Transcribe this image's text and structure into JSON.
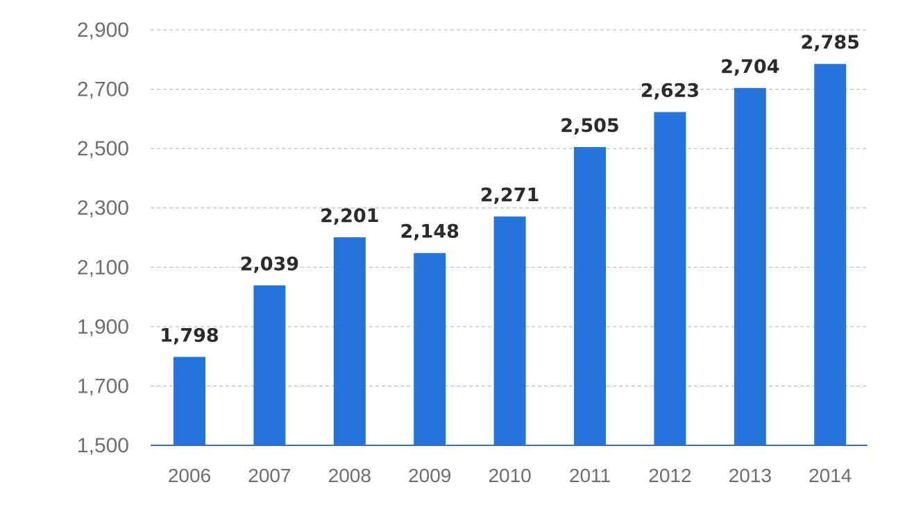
{
  "chart_data": {
    "type": "bar",
    "title": "",
    "xlabel": "",
    "ylabel": "",
    "categories": [
      "2006",
      "2007",
      "2008",
      "2009",
      "2010",
      "2011",
      "2012",
      "2013",
      "2014"
    ],
    "values": [
      1798,
      2039,
      2201,
      2148,
      2271,
      2505,
      2623,
      2704,
      2785
    ],
    "value_labels": [
      "1,798",
      "2,039",
      "2,201",
      "2,148",
      "2,271",
      "2,505",
      "2,623",
      "2,704",
      "2,785"
    ],
    "ylim": [
      1500,
      2900
    ],
    "yticks": [
      1500,
      1700,
      1900,
      2100,
      2300,
      2500,
      2700,
      2900
    ],
    "ytick_labels": [
      "1,500",
      "1,700",
      "1,900",
      "2,100",
      "2,300",
      "2,500",
      "2,700",
      "2,900"
    ],
    "grid": true,
    "bar_color": "#2574dc",
    "axis_color": "#3a6fc4"
  }
}
